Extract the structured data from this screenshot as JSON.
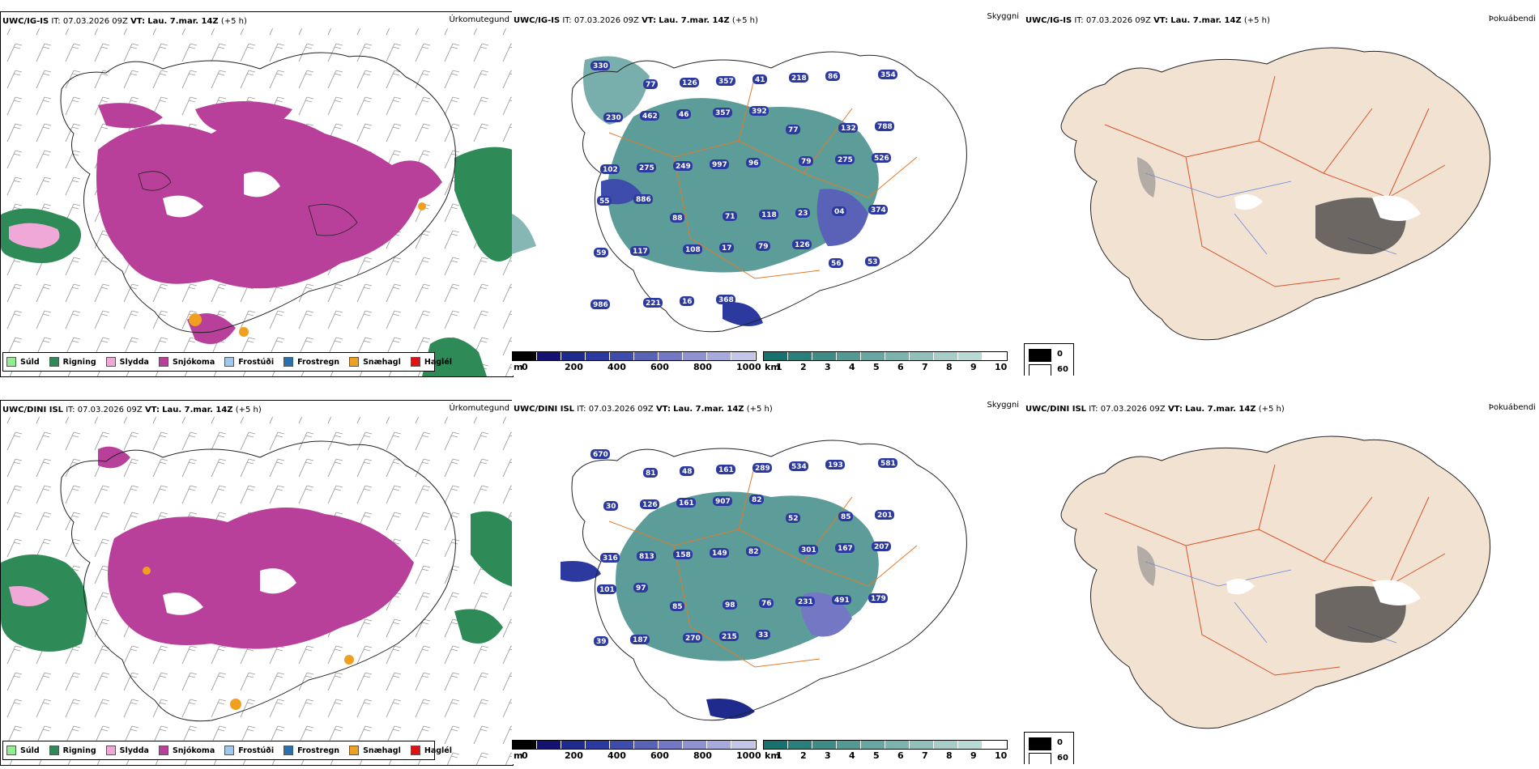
{
  "rows": [
    {
      "model": "UWC/IG-IS",
      "it_label": "IT:",
      "it_value": "07.03.2026 09Z",
      "vt_label": "VT:",
      "vt_value": "Lau. 7.mar. 14Z",
      "lead": "(+5 h)"
    },
    {
      "model": "UWC/DINI ISL",
      "it_label": "IT:",
      "it_value": "07.03.2026 09Z",
      "vt_label": "VT:",
      "vt_value": "Lau. 7.mar. 14Z",
      "lead": "(+5 h)"
    }
  ],
  "panel_titles": {
    "precip_type": "Úrkomutegund",
    "ceiling": "Skyggni",
    "fog": "Þokuábendi"
  },
  "precip_legend": [
    {
      "label": "Súld",
      "color": "#90ee90"
    },
    {
      "label": "Rigning",
      "color": "#2e8b57"
    },
    {
      "label": "Slydda",
      "color": "#f0a8d8"
    },
    {
      "label": "Snjókoma",
      "color": "#b8409a"
    },
    {
      "label": "Frostúði",
      "color": "#9ec8f0"
    },
    {
      "label": "Frostregn",
      "color": "#2a6fb0"
    },
    {
      "label": "Snæhagl",
      "color": "#f0a020"
    },
    {
      "label": "Haglél",
      "color": "#e01010"
    }
  ],
  "ceiling_colorbar": {
    "unit": "m",
    "ticks": [
      "0",
      "200",
      "400",
      "600",
      "800",
      "1000"
    ],
    "colors": [
      "#000000",
      "#141470",
      "#1e2a8c",
      "#2c3aa0",
      "#3e4cac",
      "#5a62b8",
      "#7478c4",
      "#8e92d0",
      "#a8aadc",
      "#c4c6e8"
    ]
  },
  "visibility_colorbar": {
    "unit": "km",
    "ticks": [
      "1",
      "2",
      "3",
      "4",
      "5",
      "6",
      "7",
      "8",
      "9",
      "10"
    ],
    "colors": [
      "#17726d",
      "#2b7f7a",
      "#3f8c87",
      "#549994",
      "#68a6a1",
      "#7db3ae",
      "#91c0bb",
      "#a6cdc8",
      "#bad9d5",
      "#ffffff"
    ]
  },
  "fog_legend": {
    "items": [
      {
        "label": "0",
        "color": "#000000"
      },
      {
        "label": "60",
        "color": "#ffffff"
      }
    ]
  },
  "ceiling_labels_top": [
    "330",
    "77",
    "126",
    "357",
    "41",
    "218",
    "86",
    "354",
    "230",
    "462",
    "46",
    "357",
    "392",
    "77",
    "132",
    "788",
    "102",
    "275",
    "249",
    "997",
    "96",
    "79",
    "275",
    "526",
    "55",
    "886",
    "88",
    "71",
    "118",
    "23",
    "04",
    "374",
    "59",
    "117",
    "108",
    "17",
    "79",
    "126",
    "56",
    "53",
    "986",
    "221",
    "16",
    "368"
  ],
  "ceiling_labels_bottom": [
    "670",
    "81",
    "48",
    "161",
    "289",
    "534",
    "193",
    "581",
    "30",
    "126",
    "161",
    "907",
    "82",
    "52",
    "85",
    "201",
    "316",
    "813",
    "158",
    "149",
    "82",
    "301",
    "167",
    "207",
    "101",
    "97",
    "85",
    "98",
    "76",
    "231",
    "491",
    "179",
    "39",
    "187",
    "270",
    "215",
    "33"
  ]
}
